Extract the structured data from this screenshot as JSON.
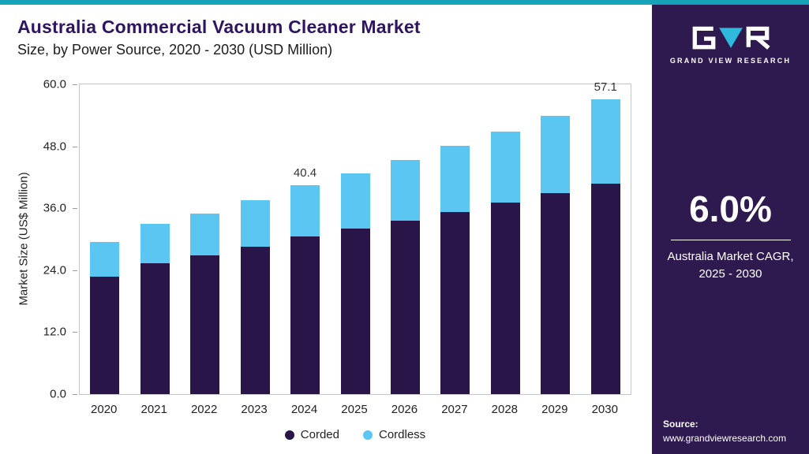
{
  "header": {
    "title": "Australia Commercial Vacuum Cleaner Market",
    "subtitle": "Size, by Power Source, 2020 - 2030 (USD Million)"
  },
  "chart_data": {
    "type": "bar",
    "stacked": true,
    "title": "Australia Commercial Vacuum Cleaner Market Size, by Power Source, 2020 - 2030 (USD Million)",
    "categories": [
      "2020",
      "2021",
      "2022",
      "2023",
      "2024",
      "2025",
      "2026",
      "2027",
      "2028",
      "2029",
      "2030"
    ],
    "series": [
      {
        "name": "Corded",
        "color": "#2A1548",
        "values": [
          22.8,
          25.4,
          26.9,
          28.6,
          30.5,
          32.0,
          33.6,
          35.3,
          37.1,
          38.9,
          40.8
        ]
      },
      {
        "name": "Cordless",
        "color": "#5BC6F2",
        "values": [
          6.7,
          7.6,
          8.1,
          8.9,
          9.9,
          10.8,
          11.8,
          12.8,
          13.8,
          15.0,
          16.3
        ]
      }
    ],
    "annotations": [
      {
        "category": "2024",
        "text": "40.4"
      },
      {
        "category": "2030",
        "text": "57.1"
      }
    ],
    "xlabel": "",
    "ylabel": "Market Size (US$ Million)",
    "ylim": [
      0,
      60
    ],
    "yticks": [
      "0.0",
      "12.0",
      "24.0",
      "36.0",
      "48.0",
      "60.0"
    ],
    "grid": false,
    "legend_position": "bottom"
  },
  "sidebar": {
    "brand_name": "GRAND VIEW RESEARCH",
    "cagr_value": "6.0%",
    "cagr_caption_line1": "Australia Market CAGR,",
    "cagr_caption_line2": "2025 - 2030",
    "source_label": "Source:",
    "source_url": "www.grandviewresearch.com"
  },
  "colors": {
    "accent_teal": "#19A3B9",
    "sidebar_bg": "#2E1A4F",
    "title_purple": "#2F1460",
    "corded": "#2A1548",
    "cordless": "#5BC6F2",
    "logo_cyan": "#2FB9DC"
  }
}
